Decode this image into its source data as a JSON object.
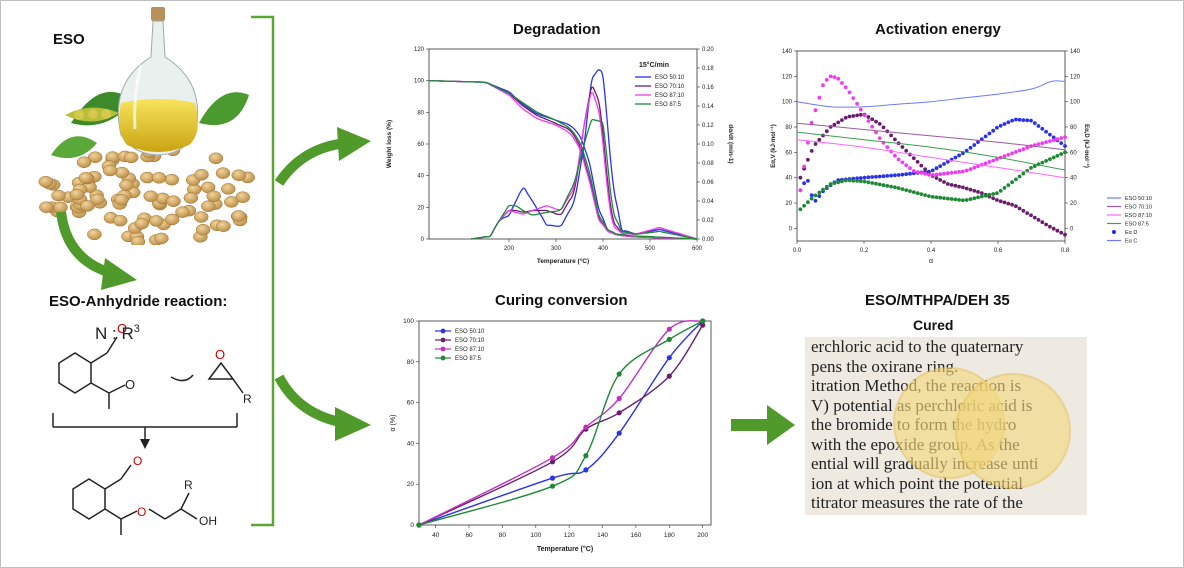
{
  "left": {
    "eso_label": "ESO",
    "reaction_title": "ESO-Anhydride reaction:",
    "catalyst": "N : R",
    "catalyst_sup": "3",
    "atom_O": "O",
    "atom_O_minus": "O",
    "atom_R": "R",
    "atom_OH": "OH"
  },
  "degradation": {
    "title": "Degradation",
    "legend_title": "15°C/min",
    "xlabel": "Temperature (°C)",
    "ylabel": "Weight loss (%)",
    "y2label": "dα/dt (min-1)",
    "xticks": [
      "200",
      "300",
      "400",
      "500",
      "600"
    ],
    "yticks": [
      "0",
      "20",
      "40",
      "60",
      "80",
      "100",
      "120"
    ],
    "y2ticks": [
      "0.00",
      "0.02",
      "0.04",
      "0.06",
      "0.08",
      "0.10",
      "0.12",
      "0.14",
      "0.16",
      "0.18",
      "0.20"
    ]
  },
  "activation": {
    "title": "Activation energy",
    "xlabel": "α",
    "ylabel": "Eα,V (kJ·mol⁻¹)",
    "y2label": "Eα,D (kJ·mol⁻¹)",
    "xticks": [
      "0.0",
      "0.2",
      "0.4",
      "0.6",
      "0.8"
    ],
    "yticks": [
      "0",
      "20",
      "40",
      "60",
      "80",
      "100",
      "120",
      "140"
    ],
    "y2ticks": [
      "0",
      "20",
      "40",
      "60",
      "80",
      "100",
      "120",
      "140"
    ],
    "legend": [
      "ESO 50:10",
      "ESO 70:10",
      "ESO 87:10",
      "ESO 87:5",
      "Eα D",
      "Eα C"
    ]
  },
  "curing": {
    "title": "Curing conversion",
    "xlabel": "Temperature (°C)",
    "ylabel": "α (%)",
    "xticks": [
      "40",
      "60",
      "80",
      "100",
      "120",
      "140",
      "160",
      "180",
      "200"
    ],
    "yticks": [
      "0",
      "20",
      "40",
      "60",
      "80",
      "100"
    ]
  },
  "cured": {
    "title": "ESO/MTHPA/DEH  35",
    "subtitle": "Cured",
    "lines": [
      "erchloric acid to the quaternary",
      "pens the oxirane ring.",
      "itration Method, the reaction is",
      "V) potential as perchloric acid is",
      "the bromide to form the hydro",
      "with the epoxide group. As the",
      "ential will gradually increase unti",
      "ion at which point the potential",
      "titrator measures the rate of the"
    ]
  },
  "colors": {
    "arrow": "#4f9a2a",
    "bracket": "#5aa832",
    "eso50_10": "#2a33e8",
    "eso70_10": "#6a1f6e",
    "eso87_10": "#f03cf0",
    "eso87_5": "#1f8a35",
    "disk": "#f4d77a"
  },
  "chart_data": [
    {
      "type": "line",
      "title": "Degradation",
      "xlabel": "Temperature (°C)",
      "ylabel": "Weight loss (%)",
      "y2label": "dα/dt (min-1)",
      "xlim": [
        30,
        600
      ],
      "ylim": [
        0,
        120
      ],
      "y2lim": [
        0,
        0.2
      ],
      "legend_title": "15°C/min",
      "legend_position": "top-right",
      "series": [
        {
          "name": "ESO 50:10",
          "color": "#2a33e8",
          "axis": "left",
          "x": [
            30,
            150,
            200,
            230,
            260,
            300,
            330,
            350,
            370,
            390,
            410,
            430,
            460,
            500,
            600
          ],
          "y": [
            100,
            99,
            93,
            85,
            79,
            75,
            72,
            66,
            50,
            20,
            6,
            3,
            1.5,
            1,
            0
          ]
        },
        {
          "name": "ESO 70:10",
          "color": "#6a1f6e",
          "axis": "left",
          "x": [
            30,
            150,
            200,
            230,
            260,
            300,
            330,
            350,
            370,
            390,
            410,
            430,
            460,
            500,
            600
          ],
          "y": [
            100,
            99,
            92,
            84,
            78,
            73,
            69,
            60,
            40,
            14,
            5,
            2.5,
            1.5,
            1,
            0
          ]
        },
        {
          "name": "ESO 87:10",
          "color": "#f03cf0",
          "axis": "left",
          "x": [
            30,
            150,
            200,
            230,
            260,
            300,
            330,
            350,
            370,
            390,
            410,
            430,
            460,
            500,
            600
          ],
          "y": [
            100,
            99,
            91,
            82,
            76,
            72,
            67,
            58,
            38,
            13,
            5,
            2.5,
            1.5,
            1,
            0
          ]
        },
        {
          "name": "ESO 87:5",
          "color": "#1f8a35",
          "axis": "left",
          "x": [
            30,
            150,
            200,
            230,
            260,
            300,
            330,
            350,
            370,
            390,
            410,
            430,
            460,
            500,
            600
          ],
          "y": [
            100,
            99,
            92,
            86,
            80,
            75,
            70,
            62,
            44,
            16,
            6,
            3,
            2,
            1.5,
            0
          ]
        },
        {
          "name": "ESO 50:10",
          "color": "#2a33e8",
          "axis": "right",
          "x": [
            120,
            160,
            180,
            200,
            215,
            230,
            250,
            280,
            310,
            340,
            360,
            375,
            390,
            400,
            410,
            420,
            440,
            470,
            520,
            560,
            600
          ],
          "y": [
            0.0,
            0.003,
            0.02,
            0.025,
            0.04,
            0.055,
            0.04,
            0.015,
            0.013,
            0.04,
            0.1,
            0.165,
            0.18,
            0.17,
            0.12,
            0.06,
            0.01,
            0.005,
            0.01,
            0.005,
            0.0
          ]
        },
        {
          "name": "ESO 70:10",
          "color": "#6a1f6e",
          "axis": "right",
          "x": [
            120,
            160,
            180,
            200,
            215,
            230,
            250,
            280,
            310,
            340,
            360,
            375,
            390,
            400,
            410,
            420,
            440,
            470,
            520,
            560,
            600
          ],
          "y": [
            0.0,
            0.003,
            0.02,
            0.03,
            0.03,
            0.028,
            0.03,
            0.03,
            0.025,
            0.05,
            0.12,
            0.16,
            0.15,
            0.11,
            0.06,
            0.02,
            0.006,
            0.005,
            0.012,
            0.006,
            0.0
          ]
        },
        {
          "name": "ESO 87:10",
          "color": "#f03cf0",
          "axis": "right",
          "x": [
            120,
            160,
            180,
            200,
            215,
            230,
            250,
            280,
            310,
            340,
            360,
            375,
            390,
            400,
            410,
            420,
            440,
            470,
            520,
            560,
            600
          ],
          "y": [
            0.0,
            0.003,
            0.02,
            0.03,
            0.028,
            0.026,
            0.03,
            0.035,
            0.03,
            0.055,
            0.12,
            0.155,
            0.14,
            0.1,
            0.05,
            0.015,
            0.006,
            0.005,
            0.012,
            0.006,
            0.0
          ]
        },
        {
          "name": "ESO 87:5",
          "color": "#1f8a35",
          "axis": "right",
          "x": [
            120,
            160,
            180,
            200,
            215,
            230,
            250,
            280,
            310,
            340,
            360,
            375,
            390,
            400,
            410,
            420,
            440,
            470,
            520,
            560,
            600
          ],
          "y": [
            0.0,
            0.003,
            0.02,
            0.035,
            0.035,
            0.03,
            0.025,
            0.028,
            0.03,
            0.06,
            0.1,
            0.125,
            0.125,
            0.12,
            0.08,
            0.03,
            0.008,
            0.005,
            0.008,
            0.004,
            0.0
          ]
        }
      ]
    },
    {
      "type": "line",
      "title": "Activation energy",
      "xlabel": "α",
      "ylabel": "Eα,V (kJ·mol⁻¹)",
      "y2label": "Eα,D (kJ·mol⁻¹)",
      "xlim": [
        0,
        0.8
      ],
      "ylim": [
        -10,
        140
      ],
      "legend_position": "right",
      "series": [
        {
          "name": "ESO 50:10 (Eα D)",
          "color": "#2a33e8",
          "marker": "dot",
          "x": [
            0.01,
            0.03,
            0.05,
            0.08,
            0.12,
            0.2,
            0.3,
            0.4,
            0.5,
            0.6,
            0.65,
            0.7,
            0.75,
            0.8
          ],
          "y": [
            30,
            40,
            20,
            30,
            38,
            40,
            42,
            45,
            60,
            80,
            86,
            85,
            75,
            65
          ]
        },
        {
          "name": "ESO 70:10 (Eα D)",
          "color": "#6a1f6e",
          "marker": "dot",
          "x": [
            0.01,
            0.05,
            0.1,
            0.15,
            0.2,
            0.25,
            0.3,
            0.35,
            0.4,
            0.45,
            0.5,
            0.55,
            0.6,
            0.65,
            0.7,
            0.75,
            0.8
          ],
          "y": [
            40,
            65,
            80,
            88,
            90,
            82,
            68,
            55,
            42,
            35,
            32,
            28,
            22,
            18,
            10,
            2,
            -5
          ]
        },
        {
          "name": "ESO 87:10 (Eα D)",
          "color": "#f03cf0",
          "marker": "dot",
          "x": [
            0.01,
            0.04,
            0.08,
            0.1,
            0.12,
            0.15,
            0.2,
            0.25,
            0.3,
            0.35,
            0.4,
            0.5,
            0.6,
            0.7,
            0.8
          ],
          "y": [
            30,
            80,
            115,
            120,
            119,
            110,
            90,
            70,
            55,
            45,
            42,
            45,
            55,
            65,
            72
          ]
        },
        {
          "name": "ESO 87:5 (Eα D)",
          "color": "#1f8a35",
          "marker": "dot",
          "x": [
            0.01,
            0.05,
            0.1,
            0.15,
            0.2,
            0.3,
            0.4,
            0.5,
            0.6,
            0.7,
            0.8
          ],
          "y": [
            15,
            25,
            35,
            38,
            37,
            32,
            25,
            22,
            28,
            48,
            60
          ]
        },
        {
          "name": "ESO 50:10 (Eα C)",
          "color": "#6b7bff",
          "marker": "line",
          "x": [
            0.0,
            0.1,
            0.2,
            0.3,
            0.4,
            0.5,
            0.6,
            0.7,
            0.76,
            0.8
          ],
          "y": [
            100,
            96,
            96,
            98,
            100,
            103,
            106,
            110,
            116,
            116
          ]
        },
        {
          "name": "ESO 70:10 (Eα C)",
          "color": "#9a5aa0",
          "marker": "line",
          "x": [
            0.0,
            0.2,
            0.4,
            0.6,
            0.8
          ],
          "y": [
            83,
            78,
            73,
            68,
            62
          ]
        },
        {
          "name": "ESO 87:10 (Eα C)",
          "color": "#ff66ff",
          "marker": "line",
          "x": [
            0.0,
            0.2,
            0.4,
            0.6,
            0.8
          ],
          "y": [
            70,
            64,
            56,
            48,
            40
          ]
        },
        {
          "name": "ESO 87:5 (Eα C)",
          "color": "#3aa050",
          "marker": "line",
          "x": [
            0.0,
            0.2,
            0.4,
            0.6,
            0.8
          ],
          "y": [
            76,
            70,
            64,
            56,
            46
          ]
        }
      ]
    },
    {
      "type": "line",
      "title": "Curing conversion",
      "xlabel": "Temperature (°C)",
      "ylabel": "α (%)",
      "xlim": [
        30,
        205
      ],
      "ylim": [
        0,
        100
      ],
      "legend_position": "top-left",
      "series": [
        {
          "name": "ESO 50:10",
          "color": "#2a33e8",
          "x": [
            30,
            110,
            130,
            150,
            180,
            200
          ],
          "y": [
            0,
            23,
            27,
            45,
            82,
            100
          ]
        },
        {
          "name": "ESO 70:10",
          "color": "#6a1f6e",
          "x": [
            30,
            110,
            130,
            150,
            180,
            200
          ],
          "y": [
            0,
            31,
            47,
            55,
            73,
            98
          ]
        },
        {
          "name": "ESO 87:10",
          "color": "#c030c0",
          "x": [
            30,
            110,
            130,
            150,
            180,
            200
          ],
          "y": [
            0,
            33,
            48,
            62,
            96,
            100
          ]
        },
        {
          "name": "ESO 87:5",
          "color": "#1f8a35",
          "x": [
            30,
            110,
            130,
            150,
            180,
            200
          ],
          "y": [
            0,
            19,
            34,
            74,
            91,
            100
          ]
        }
      ]
    }
  ]
}
